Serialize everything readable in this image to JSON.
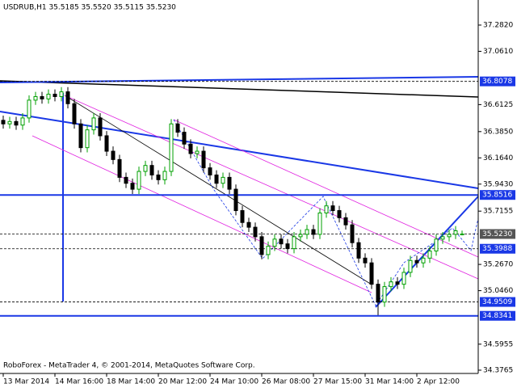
{
  "chart_data": {
    "type": "candlestick",
    "title": "USDRUB,H1  35.5185 35.5520 35.5115 35.5230",
    "footer": "RoboForex - MetaTrader 4, © 2001-2014, MetaQuotes Software Corp.",
    "categories": [
      "13 Mar 2014",
      null,
      null,
      null,
      null,
      null,
      null,
      null,
      "14 Mar 16:00",
      null,
      null,
      null,
      null,
      null,
      null,
      null,
      "18 Mar 14:00",
      null,
      null,
      null,
      null,
      null,
      null,
      null,
      "20 Mar 12:00",
      null,
      null,
      null,
      null,
      null,
      null,
      null,
      "24 Mar 10:00",
      null,
      null,
      null,
      null,
      null,
      null,
      null,
      "26 Mar 08:00",
      null,
      null,
      null,
      null,
      null,
      null,
      null,
      "27 Mar 15:00",
      null,
      null,
      null,
      null,
      null,
      null,
      null,
      "31 Mar 14:00",
      null,
      null,
      null,
      null,
      null,
      null,
      null,
      "2 Apr 12:00",
      null,
      null,
      null,
      null,
      null,
      null,
      null
    ],
    "open": [
      36.48,
      36.45,
      36.47,
      36.44,
      36.5,
      36.65,
      36.68,
      36.66,
      36.7,
      36.68,
      36.72,
      36.62,
      36.45,
      36.25,
      36.4,
      36.5,
      36.35,
      36.22,
      36.15,
      36.0,
      35.95,
      35.9,
      36.05,
      36.1,
      36.02,
      35.98,
      36.05,
      36.45,
      36.38,
      36.28,
      36.2,
      36.22,
      36.08,
      36.02,
      35.95,
      36.0,
      35.9,
      35.72,
      35.62,
      35.58,
      35.5,
      35.35,
      35.42,
      35.48,
      35.44,
      35.4,
      35.5,
      35.52,
      35.56,
      35.52,
      35.7,
      35.76,
      35.72,
      35.66,
      35.6,
      35.45,
      35.32,
      35.28,
      35.1,
      34.95,
      35.08,
      35.12,
      35.1,
      35.2,
      35.3,
      35.28,
      35.32,
      35.38,
      35.48,
      35.5,
      35.52,
      35.5185
    ],
    "high": [
      36.52,
      36.51,
      36.51,
      36.54,
      36.69,
      36.72,
      36.72,
      36.74,
      36.74,
      36.76,
      36.76,
      36.66,
      36.49,
      36.44,
      36.54,
      36.54,
      36.39,
      36.26,
      36.19,
      36.04,
      35.99,
      36.09,
      36.14,
      36.14,
      36.06,
      36.09,
      36.49,
      36.49,
      36.42,
      36.32,
      36.26,
      36.26,
      36.12,
      36.06,
      36.04,
      36.04,
      35.94,
      35.76,
      35.66,
      35.62,
      35.54,
      35.46,
      35.52,
      35.52,
      35.48,
      35.54,
      35.56,
      35.6,
      35.6,
      35.74,
      35.8,
      35.8,
      35.76,
      35.7,
      35.64,
      35.49,
      35.36,
      35.32,
      35.14,
      35.12,
      35.16,
      35.16,
      35.24,
      35.34,
      35.34,
      35.36,
      35.42,
      35.52,
      35.54,
      35.56,
      35.59,
      35.552
    ],
    "low": [
      36.41,
      36.41,
      36.4,
      36.4,
      36.46,
      36.61,
      36.62,
      36.62,
      36.64,
      36.64,
      36.58,
      36.41,
      36.21,
      36.21,
      36.36,
      36.31,
      36.18,
      36.11,
      35.96,
      35.91,
      35.86,
      35.86,
      36.01,
      35.98,
      35.94,
      35.94,
      36.01,
      36.34,
      36.24,
      36.16,
      36.16,
      36.04,
      35.98,
      35.91,
      35.91,
      35.86,
      35.68,
      35.58,
      35.54,
      35.46,
      35.31,
      35.31,
      35.38,
      35.4,
      35.36,
      35.36,
      35.46,
      35.48,
      35.48,
      35.48,
      35.66,
      35.68,
      35.62,
      35.56,
      35.41,
      35.28,
      35.24,
      35.06,
      34.84,
      34.91,
      35.04,
      35.06,
      35.06,
      35.16,
      35.24,
      35.24,
      35.28,
      35.34,
      35.44,
      35.46,
      35.48,
      35.5115
    ],
    "close": [
      36.45,
      36.47,
      36.44,
      36.5,
      36.65,
      36.68,
      36.66,
      36.7,
      36.68,
      36.72,
      36.62,
      36.45,
      36.25,
      36.4,
      36.5,
      36.35,
      36.22,
      36.15,
      36.0,
      35.95,
      35.9,
      36.05,
      36.1,
      36.02,
      35.98,
      36.05,
      36.45,
      36.38,
      36.28,
      36.2,
      36.22,
      36.08,
      36.02,
      35.95,
      36.0,
      35.9,
      35.72,
      35.62,
      35.58,
      35.5,
      35.35,
      35.42,
      35.48,
      35.44,
      35.4,
      35.5,
      35.52,
      35.56,
      35.52,
      35.7,
      35.76,
      35.72,
      35.66,
      35.6,
      35.45,
      35.32,
      35.28,
      35.1,
      34.95,
      35.08,
      35.12,
      35.1,
      35.2,
      35.3,
      35.28,
      35.32,
      35.38,
      35.48,
      35.5,
      35.52,
      35.55,
      35.523
    ],
    "up_color": "#00a000",
    "down_color": "#000000",
    "ylim": [
      34.349,
      37.493
    ],
    "yticks": [
      {
        "value": 37.282,
        "label": "37.2820"
      },
      {
        "value": 37.061,
        "label": "37.0610"
      },
      36.6125,
      {
        "value": 36.385,
        "label": "36.3850"
      },
      {
        "value": 36.164,
        "label": "36.1640"
      },
      {
        "value": 35.943,
        "label": "35.9430"
      },
      35.7155,
      {
        "value": 35.267,
        "label": "35.2670"
      },
      {
        "value": 35.046,
        "label": "35.0460"
      },
      34.5955,
      34.3765
    ],
    "levels": [
      {
        "value": 36.8078,
        "label": "36.8078",
        "color": "#1a38e6",
        "dashed": true
      },
      {
        "value": 35.8516,
        "label": "35.8516",
        "color": "#1a38e6",
        "dashed": false
      },
      {
        "value": 35.523,
        "label": "35.5230",
        "color": "#555555",
        "dashed": true
      },
      {
        "value": 35.3988,
        "label": "35.3988",
        "color": "#1a38e6",
        "dashed": true
      },
      {
        "value": 34.9509,
        "label": "34.9509",
        "color": "#1a38e6",
        "dashed": true
      },
      {
        "value": 34.8341,
        "label": "34.8341",
        "color": "#1a38e6",
        "dashed": false
      }
    ]
  }
}
